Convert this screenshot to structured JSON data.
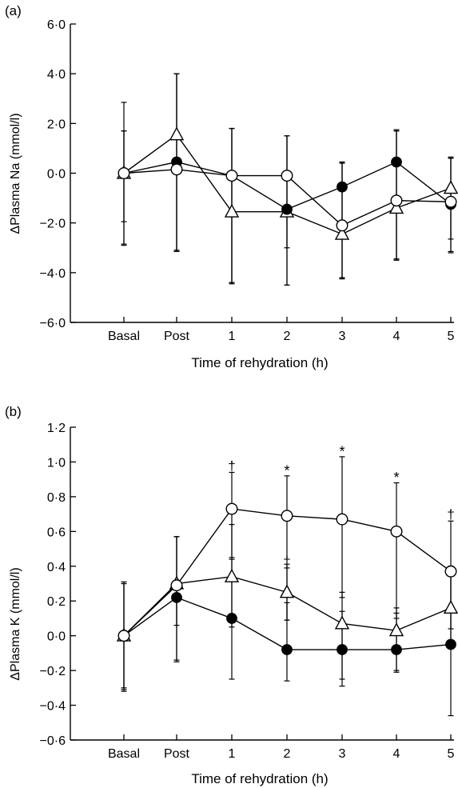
{
  "chart_data": [
    {
      "panel_label": "(a)",
      "type": "line",
      "xlabel": "Time of rehydration (h)",
      "ylabel": "ΔPlasma Na (mmol/l)",
      "categories": [
        "Basal",
        "Post",
        "1",
        "2",
        "3",
        "4",
        "5"
      ],
      "yticks": [
        "−6·0",
        "−4·0",
        "−2·0",
        "0·0",
        "2·0",
        "4·0",
        "6·0"
      ],
      "ylim": [
        -6.0,
        6.0
      ],
      "grid": false,
      "series": [
        {
          "marker": "filled-circle",
          "values": [
            0.0,
            0.45,
            -0.1,
            -1.45,
            -0.55,
            0.45,
            -1.25
          ],
          "err_low": [
            2.85,
            3.55,
            4.3,
            3.05,
            3.65,
            3.9,
            1.9
          ],
          "err_high": [
            2.85,
            3.55,
            1.9,
            2.95,
            1.0,
            1.25,
            1.85
          ]
        },
        {
          "marker": "open-circle",
          "values": [
            0.0,
            0.15,
            -0.1,
            -0.1,
            -2.1,
            -1.1,
            -1.15
          ],
          "err_low": [
            2.9,
            3.3,
            4.3,
            2.9,
            2.1,
            2.35,
            1.5
          ],
          "err_high": [
            1.7,
            3.85,
            1.9,
            1.6,
            2.55,
            2.85,
            1.8
          ]
        },
        {
          "marker": "open-triangle",
          "values": [
            0.0,
            1.55,
            -1.55,
            -1.55,
            -2.45,
            -1.4,
            -0.6
          ],
          "err_low": [
            1.95,
            4.65,
            2.9,
            2.95,
            1.8,
            2.1,
            2.6
          ],
          "err_high": [
            1.7,
            2.45,
            3.35,
            3.05,
            2.85,
            3.1,
            1.2
          ]
        }
      ]
    },
    {
      "panel_label": "(b)",
      "type": "line",
      "xlabel": "Time of rehydration (h)",
      "ylabel": "ΔPlasma K (mmol/l)",
      "categories": [
        "Basal",
        "Post",
        "1",
        "2",
        "3",
        "4",
        "5"
      ],
      "yticks": [
        "−0·6",
        "−0·4",
        "−0·2",
        "0·0",
        "0·2",
        "0·4",
        "0·6",
        "0·8",
        "1·0",
        "1·2"
      ],
      "ylim": [
        -0.6,
        1.2
      ],
      "grid": false,
      "series": [
        {
          "marker": "filled-circle",
          "values": [
            0.0,
            0.22,
            0.1,
            -0.08,
            -0.08,
            -0.08,
            -0.05
          ],
          "err_low": [
            0.32,
            0.36,
            0.35,
            0.18,
            0.21,
            0.13,
            0.41
          ],
          "err_high": [
            0.31,
            0.35,
            0.34,
            0.27,
            0.22,
            0.21,
            0.45
          ]
        },
        {
          "marker": "open-circle",
          "values": [
            0.0,
            0.29,
            0.73,
            0.69,
            0.67,
            0.6,
            0.37
          ],
          "err_low": [
            0.3,
            0.23,
            0.28,
            0.6,
            0.45,
            0.5,
            0.33
          ],
          "err_high": [
            0.3,
            0.28,
            0.21,
            0.23,
            0.36,
            0.28,
            0.29
          ]
        },
        {
          "marker": "open-triangle",
          "values": [
            0.0,
            0.3,
            0.34,
            0.25,
            0.07,
            0.03,
            0.16
          ],
          "err_low": [
            0.31,
            0.45,
            0.29,
            0.16,
            0.32,
            0.23,
            0.2
          ],
          "err_high": [
            0.3,
            0.27,
            0.3,
            0.14,
            0.18,
            0.13,
            0.22
          ]
        }
      ],
      "annotations": [
        {
          "category": "1",
          "symbol": "†",
          "value": 0.98
        },
        {
          "category": "2",
          "symbol": "*",
          "value": 0.95
        },
        {
          "category": "3",
          "symbol": "*",
          "value": 1.06
        },
        {
          "category": "4",
          "symbol": "*",
          "value": 0.91
        },
        {
          "category": "5",
          "symbol": "†",
          "value": 0.7
        },
        {
          "category": "2",
          "symbol": "‡",
          "value": 0.43
        }
      ]
    }
  ]
}
